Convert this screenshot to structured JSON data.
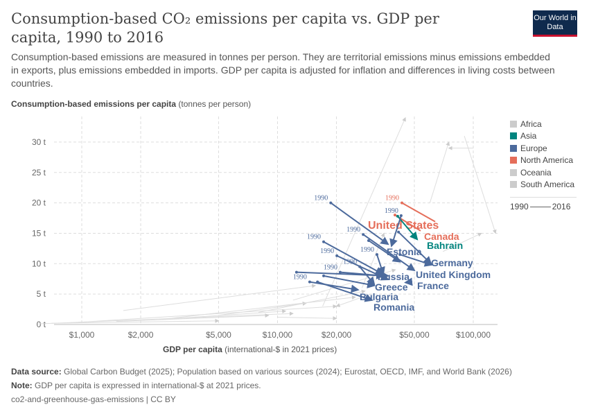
{
  "title": "Consumption-based CO₂ emissions per capita vs. GDP per capita, 1990 to 2016",
  "subtitle": "Consumption-based emissions are measured in tonnes per person. They are territorial emissions minus emissions embedded in exports, plus emissions embedded in imports. GDP per capita is adjusted for inflation and differences in living costs between countries.",
  "logo": "Our World in Data",
  "legend": {
    "items": [
      {
        "label": "Africa",
        "color": "#cccccc"
      },
      {
        "label": "Asia",
        "color": "#00847e"
      },
      {
        "label": "Europe",
        "color": "#4c6a9c"
      },
      {
        "label": "North America",
        "color": "#e56e5a"
      },
      {
        "label": "Oceania",
        "color": "#cccccc"
      },
      {
        "label": "South America",
        "color": "#cccccc"
      }
    ],
    "start_year": "1990",
    "end_year": "2016"
  },
  "footer": {
    "source_label": "Data source:",
    "source": "Global Carbon Budget (2025); Population based on various sources (2024); Eurostat, OECD, IMF, and World Bank (2026)",
    "note_label": "Note:",
    "note": "GDP per capita is expressed in international-$ at 2021 prices.",
    "license": "co2-and-greenhouse-gas-emissions | CC BY"
  },
  "chart_data": {
    "type": "scatter",
    "xlabel": "GDP per capita",
    "xlabel_unit": "(international-$ in 2021 prices)",
    "ylabel": "Consumption-based emissions per capita",
    "ylabel_unit": "(tonnes per person)",
    "x_scale": "log",
    "xlim": [
      550,
      130000
    ],
    "ylim": [
      0,
      33
    ],
    "grid": true,
    "legend_position": "right",
    "x_ticks": [
      {
        "v": 1000,
        "l": "$1,000"
      },
      {
        "v": 2000,
        "l": "$2,000"
      },
      {
        "v": 5000,
        "l": "$5,000"
      },
      {
        "v": 10000,
        "l": "$10,000"
      },
      {
        "v": 20000,
        "l": "$20,000"
      },
      {
        "v": 50000,
        "l": "$50,000"
      },
      {
        "v": 100000,
        "l": "$100,000"
      }
    ],
    "y_ticks": [
      {
        "v": 0,
        "l": "0 t"
      },
      {
        "v": 5,
        "l": "5 t"
      },
      {
        "v": 10,
        "l": "10 t"
      },
      {
        "v": 15,
        "l": "15 t"
      },
      {
        "v": 20,
        "l": "20 t"
      },
      {
        "v": 25,
        "l": "25 t"
      },
      {
        "v": 30,
        "l": "30 t"
      }
    ],
    "series": [
      {
        "name": "Estonia",
        "region": "Europe",
        "start": [
          18700,
          20.0
        ],
        "end": [
          36700,
          13.2
        ],
        "start_label": "1990"
      },
      {
        "name": "United States",
        "region": "North America",
        "start": [
          43200,
          20.0
        ],
        "end": [
          63900,
          16.9
        ],
        "start_label": "1990"
      },
      {
        "name": "Canada",
        "region": "North America",
        "start": [
          39800,
          18.0
        ],
        "end": [
          53800,
          15.4
        ]
      },
      {
        "name": "Bahrain",
        "region": "Asia",
        "start": [
          41100,
          17.8
        ],
        "end": [
          51700,
          14.0
        ]
      },
      {
        "name": "",
        "region": "Europe",
        "start": [
          42800,
          17.9
        ],
        "end": [
          38200,
          12.9
        ],
        "start_label": "1990"
      },
      {
        "name": "Germany",
        "region": "Europe",
        "start": [
          41500,
          15.2
        ],
        "end": [
          60800,
          10.0
        ]
      },
      {
        "name": "United Kingdom",
        "region": "Europe",
        "start": [
          27400,
          14.8
        ],
        "end": [
          50000,
          8.9
        ],
        "start_label": "1990"
      },
      {
        "name": "",
        "region": "Europe",
        "start": [
          29200,
          13.8
        ],
        "end": [
          42200,
          10.3
        ]
      },
      {
        "name": "Russia",
        "region": "Europe",
        "start": [
          17200,
          13.6
        ],
        "end": [
          34400,
          8.3
        ],
        "start_label": "1990"
      },
      {
        "name": "",
        "region": "Europe",
        "start": [
          20100,
          11.3
        ],
        "end": [
          36700,
          7.4
        ],
        "start_label": "1990"
      },
      {
        "name": "",
        "region": "Europe",
        "start": [
          32200,
          11.5
        ],
        "end": [
          34700,
          8.3
        ],
        "start_label": "1990"
      },
      {
        "name": "Greece",
        "region": "Europe",
        "start": [
          26300,
          9.5
        ],
        "end": [
          31200,
          6.6
        ],
        "start_label": "1990"
      },
      {
        "name": "",
        "region": "Europe",
        "start": [
          20900,
          8.6
        ],
        "end": [
          34700,
          8.0
        ],
        "start_label": "1990"
      },
      {
        "name": "",
        "region": "Europe",
        "start": [
          12500,
          8.6
        ],
        "end": [
          36700,
          8.0
        ]
      },
      {
        "name": "Bulgaria",
        "region": "Europe",
        "start": [
          14600,
          7.0
        ],
        "end": [
          25800,
          5.7
        ],
        "start_label": "1990"
      },
      {
        "name": "Romania",
        "region": "Europe",
        "start": [
          16000,
          7.0
        ],
        "end": [
          30400,
          4.0
        ]
      },
      {
        "name": "",
        "region": "Europe",
        "start": [
          17200,
          8.0
        ],
        "end": [
          31200,
          6.4
        ]
      },
      {
        "name": "",
        "region": "Europe",
        "start": [
          42200,
          11.5
        ],
        "end": [
          61300,
          9.8
        ]
      },
      {
        "name": "France",
        "region": "Europe",
        "start": [
          48000,
          7.0
        ],
        "end": [
          45000,
          6.9
        ]
      }
    ],
    "background_series": [
      {
        "start": [
          1630,
          2.3
        ],
        "end": [
          15600,
          6.4
        ]
      },
      {
        "start": [
          600,
          0.1
        ],
        "end": [
          12000,
          1.8
        ]
      },
      {
        "start": [
          900,
          0.3
        ],
        "end": [
          20000,
          3.0
        ]
      },
      {
        "start": [
          1500,
          0.5
        ],
        "end": [
          9000,
          1.5
        ]
      },
      {
        "start": [
          2500,
          0.8
        ],
        "end": [
          25000,
          4.5
        ]
      },
      {
        "start": [
          700,
          0.2
        ],
        "end": [
          5000,
          0.6
        ]
      },
      {
        "start": [
          17000,
          3.0
        ],
        "end": [
          45000,
          34
        ]
      },
      {
        "start": [
          90000,
          31
        ],
        "end": [
          130000,
          15
        ]
      },
      {
        "start": [
          60000,
          20
        ],
        "end": [
          75000,
          30
        ]
      },
      {
        "start": [
          100000,
          29
        ],
        "end": [
          75000,
          29
        ]
      },
      {
        "start": [
          27000,
          6.0
        ],
        "end": [
          35000,
          15
        ]
      },
      {
        "start": [
          5000,
          1.5
        ],
        "end": [
          14000,
          3.5
        ]
      },
      {
        "start": [
          8000,
          2.0
        ],
        "end": [
          28000,
          5.5
        ]
      },
      {
        "start": [
          3000,
          1.0
        ],
        "end": [
          11000,
          2.2
        ]
      },
      {
        "start": [
          12000,
          4.0
        ],
        "end": [
          40000,
          9
        ]
      },
      {
        "start": [
          70000,
          12
        ],
        "end": [
          110000,
          15
        ]
      },
      {
        "start": [
          30000,
          5
        ],
        "end": [
          20000,
          3
        ]
      },
      {
        "start": [
          10000,
          1.2
        ],
        "end": [
          20000,
          1.0
        ]
      }
    ]
  }
}
